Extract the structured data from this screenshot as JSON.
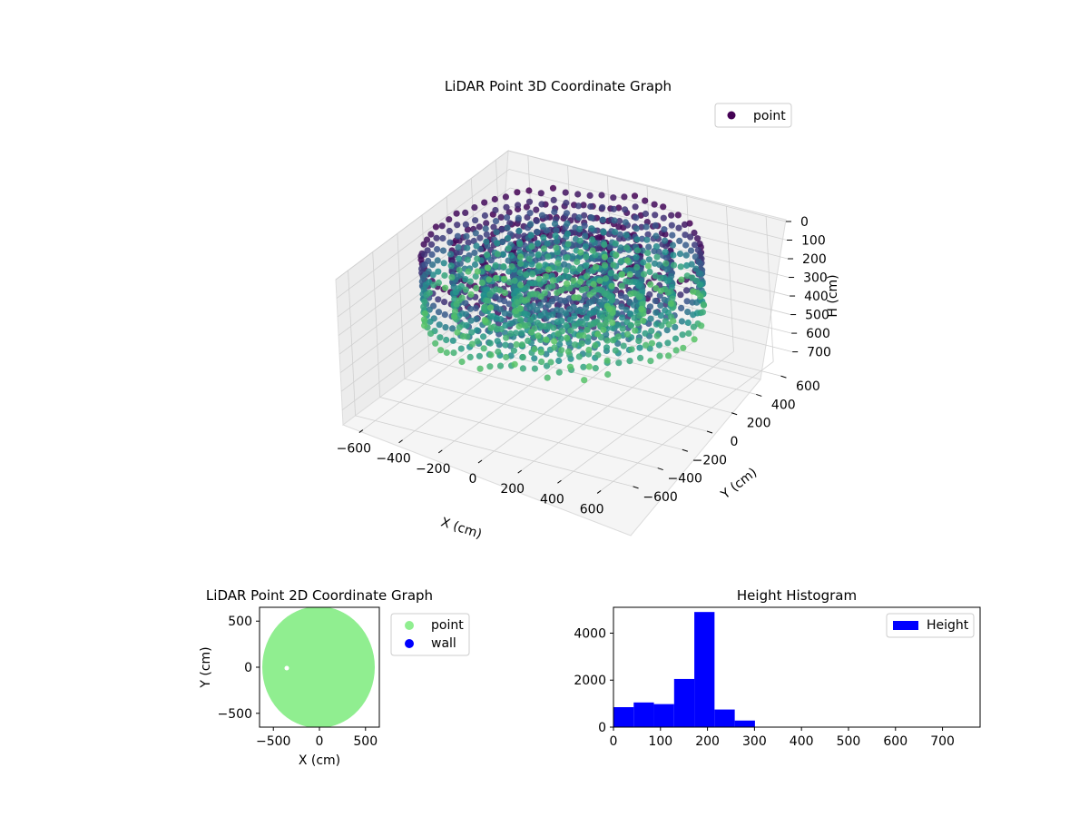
{
  "chart_data": [
    {
      "type": "scatter",
      "title": "LiDAR Point 3D Coordinate Graph",
      "projection": "3d",
      "xlabel": "X (cm)",
      "ylabel": "Y (cm)",
      "zlabel": "H (cm)",
      "xlim": [
        -700,
        700
      ],
      "ylim": [
        -700,
        700
      ],
      "zlim": [
        0,
        780
      ],
      "z_inverted": true,
      "x_ticks": [
        "−600",
        "−400",
        "−200",
        "0",
        "200",
        "400",
        "600"
      ],
      "y_ticks": [
        "−600",
        "−400",
        "−200",
        "0",
        "200",
        "400",
        "600"
      ],
      "z_ticks": [
        "0",
        "100",
        "200",
        "300",
        "400",
        "500",
        "600",
        "700"
      ],
      "colormap": "viridis",
      "grid": true,
      "legend": {
        "placement": "top-right",
        "entries": [
          "point"
        ]
      },
      "series": [
        {
          "name": "point",
          "shape": "ring",
          "inner_radius": 210,
          "outer_radius": 600,
          "height_range": [
            0,
            330
          ],
          "color": "#440154"
        }
      ]
    },
    {
      "type": "scatter",
      "title": "LiDAR Point 2D Coordinate Graph",
      "xlabel": "X (cm)",
      "ylabel": "Y (cm)",
      "xlim": [
        -650,
        650
      ],
      "ylim": [
        -650,
        650
      ],
      "x_ticks": [
        "−500",
        "0",
        "500"
      ],
      "y_ticks": [
        "500",
        "0",
        "−500"
      ],
      "legend": {
        "placement": "outside-right",
        "entries": [
          "point",
          "wall"
        ]
      },
      "series": [
        {
          "name": "point",
          "color": "#90ee90",
          "shape": "disc",
          "radius": 600
        },
        {
          "name": "wall",
          "color": "#0000ff"
        }
      ]
    },
    {
      "type": "bar",
      "title": "Height Histogram",
      "xlabel": "",
      "ylabel": "",
      "xlim": [
        0,
        780
      ],
      "ylim": [
        0,
        5100
      ],
      "x_ticks": [
        "0",
        "100",
        "200",
        "300",
        "400",
        "500",
        "600",
        "700"
      ],
      "y_ticks": [
        "0",
        "2000",
        "4000"
      ],
      "bin_edges": [
        0,
        43,
        86,
        129,
        172,
        215,
        258,
        301
      ],
      "values": [
        850,
        1050,
        980,
        2050,
        4900,
        750,
        280
      ],
      "color": "#0000ff",
      "legend": {
        "placement": "top-right",
        "entries": [
          "Height"
        ]
      }
    }
  ]
}
